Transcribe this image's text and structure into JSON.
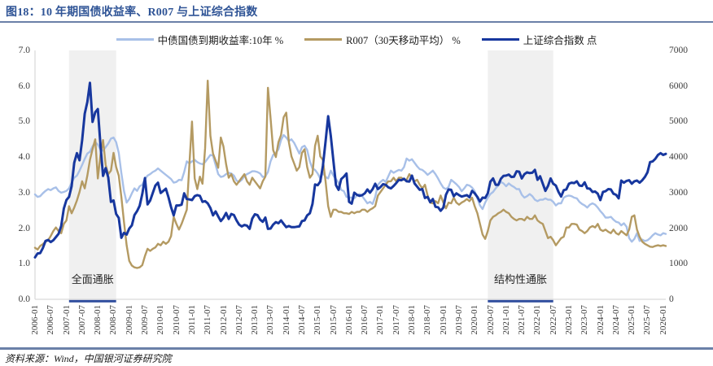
{
  "header": {
    "title": "图18：10 年期国债收益率、R007 与上证综合指数"
  },
  "footer": {
    "source": "资料来源：Wind，中国银河证券研究院"
  },
  "colors": {
    "title_blue": "#2F5496",
    "rule_blue": "#6B80A8",
    "axis_line": "#D9D9D9",
    "tick_text": "#3D3D3D",
    "region_fill": "#F0F0F0",
    "region_underline": "#2F4D9E",
    "bond10y": "#A8C0E8",
    "r007": "#B49A62",
    "sse": "#17379E"
  },
  "chart_data": {
    "type": "line",
    "title": "10 年期国债收益率、R007 与上证综合指数",
    "frequency": "monthly",
    "x_start": "2006-01",
    "x_end": "2026-02",
    "grid": false,
    "legend_position": "top",
    "left_axis": {
      "min": 0,
      "max": 7,
      "step": 1,
      "format": "0.0"
    },
    "right_axis": {
      "min": 0,
      "max": 7000,
      "step": 1000,
      "format": "0"
    },
    "x_tick_labels": [
      "2006-01",
      "2006-07",
      "2007-01",
      "2007-07",
      "2008-01",
      "2008-07",
      "2009-01",
      "2009-07",
      "2010-01",
      "2010-07",
      "2011-01",
      "2011-07",
      "2012-01",
      "2012-07",
      "2013-01",
      "2013-07",
      "2014-01",
      "2014-07",
      "2015-01",
      "2015-07",
      "2016-01",
      "2016-07",
      "2017-01",
      "2017-07",
      "2018-01",
      "2018-07",
      "2019-01",
      "2019-07",
      "2020-01",
      "2020-07",
      "2021-01",
      "2021-07",
      "2022-01",
      "2022-07",
      "2023-01",
      "2023-07",
      "2024-01",
      "2024-07",
      "2025-01",
      "2025-07",
      "2026-01"
    ],
    "highlight_regions": [
      {
        "label": "全面通胀",
        "start": "2007-02",
        "end": "2008-08"
      },
      {
        "label": "结构性通胀",
        "start": "2020-06",
        "end": "2022-07"
      }
    ],
    "series": [
      {
        "id": "bond10y",
        "name": "中债国债到期收益率:10年 %",
        "axis": "left",
        "color": "#A8C0E8",
        "width": 2.4,
        "values": [
          2.95,
          2.88,
          2.9,
          2.98,
          3.05,
          3.1,
          3.07,
          3.12,
          3.15,
          3.05,
          3.0,
          3.02,
          3.05,
          3.12,
          3.28,
          3.42,
          3.48,
          3.62,
          3.78,
          3.95,
          4.1,
          4.15,
          4.3,
          4.42,
          4.35,
          4.22,
          4.18,
          4.28,
          4.38,
          4.52,
          4.55,
          4.42,
          4.12,
          3.55,
          3.05,
          2.72,
          2.82,
          2.98,
          3.12,
          3.05,
          3.18,
          3.22,
          3.38,
          3.48,
          3.52,
          3.58,
          3.62,
          3.68,
          3.62,
          3.56,
          3.5,
          3.44,
          3.38,
          3.28,
          3.3,
          3.36,
          3.35,
          3.58,
          3.88,
          3.82,
          3.88,
          3.92,
          3.86,
          3.82,
          3.8,
          3.86,
          3.96,
          4.06,
          4.04,
          3.78,
          3.52,
          3.44,
          3.46,
          3.52,
          3.56,
          3.54,
          3.48,
          3.34,
          3.3,
          3.36,
          3.46,
          3.52,
          3.56,
          3.6,
          3.6,
          3.58,
          3.54,
          3.44,
          3.46,
          3.58,
          3.88,
          4.06,
          4.12,
          4.22,
          4.48,
          4.62,
          4.55,
          4.45,
          4.5,
          4.4,
          4.25,
          4.1,
          4.28,
          4.32,
          4.2,
          3.88,
          3.68,
          3.64,
          3.54,
          3.4,
          3.56,
          3.44,
          3.4,
          3.62,
          3.48,
          3.38,
          3.28,
          3.08,
          3.04,
          2.88,
          2.86,
          2.86,
          2.84,
          2.92,
          2.96,
          2.9,
          2.8,
          2.7,
          2.74,
          2.68,
          2.88,
          3.22,
          3.3,
          3.36,
          3.3,
          3.46,
          3.62,
          3.56,
          3.6,
          3.64,
          3.62,
          3.72,
          3.96,
          3.9,
          3.94,
          3.84,
          3.74,
          3.66,
          3.64,
          3.58,
          3.5,
          3.56,
          3.62,
          3.52,
          3.4,
          3.26,
          3.14,
          3.1,
          3.16,
          3.36,
          3.3,
          3.24,
          3.16,
          3.04,
          3.12,
          3.22,
          3.2,
          3.14,
          3.04,
          2.84,
          2.64,
          2.54,
          2.72,
          2.86,
          2.96,
          3.02,
          3.12,
          3.2,
          3.3,
          3.26,
          3.18,
          3.26,
          3.2,
          3.16,
          3.1,
          3.1,
          2.94,
          2.86,
          2.9,
          2.96,
          2.9,
          2.8,
          2.76,
          2.8,
          2.8,
          2.84,
          2.8,
          2.8,
          2.74,
          2.64,
          2.7,
          2.7,
          2.86,
          2.9,
          2.92,
          2.9,
          2.86,
          2.84,
          2.74,
          2.68,
          2.64,
          2.58,
          2.66,
          2.7,
          2.66,
          2.58,
          2.48,
          2.4,
          2.3,
          2.3,
          2.32,
          2.24,
          2.18,
          2.16,
          2.08,
          2.14,
          2.04,
          1.72,
          1.62,
          1.7,
          1.86,
          1.64,
          1.68,
          1.64,
          1.66,
          1.72,
          1.8,
          1.86,
          1.82,
          1.8,
          1.86,
          1.84
        ]
      },
      {
        "id": "r007",
        "name": "R007（30天移动平均） %",
        "axis": "left",
        "color": "#B49A62",
        "width": 2.4,
        "values": [
          1.45,
          1.4,
          1.5,
          1.55,
          1.62,
          1.66,
          1.78,
          1.92,
          2.02,
          1.92,
          1.86,
          2.12,
          2.22,
          2.62,
          2.42,
          2.58,
          2.78,
          3.02,
          3.32,
          3.12,
          3.48,
          3.92,
          4.22,
          4.5,
          3.4,
          4.05,
          4.48,
          3.78,
          3.52,
          3.62,
          4.12,
          3.72,
          3.48,
          2.88,
          2.18,
          1.52,
          1.08,
          0.95,
          0.9,
          0.88,
          0.9,
          0.96,
          1.22,
          1.42,
          1.36,
          1.42,
          1.46,
          1.56,
          1.52,
          1.62,
          1.56,
          1.62,
          1.78,
          2.32,
          2.12,
          1.96,
          2.12,
          2.32,
          2.52,
          3.8,
          5.0,
          3.4,
          3.1,
          3.45,
          3.25,
          4.25,
          6.15,
          4.6,
          4.1,
          3.9,
          3.7,
          4.55,
          4.3,
          3.8,
          3.42,
          3.52,
          3.32,
          3.22,
          3.32,
          3.42,
          3.52,
          3.32,
          3.22,
          3.42,
          3.32,
          3.22,
          3.12,
          3.32,
          3.45,
          5.95,
          5.1,
          4.2,
          4.0,
          4.42,
          4.62,
          5.12,
          5.25,
          4.42,
          4.02,
          3.82,
          3.62,
          3.72,
          4.12,
          4.22,
          3.72,
          3.42,
          3.52,
          4.32,
          4.6,
          4.02,
          3.92,
          3.32,
          2.62,
          2.32,
          2.52,
          2.52,
          2.46,
          2.46,
          2.42,
          2.42,
          2.4,
          2.46,
          2.42,
          2.46,
          2.46,
          2.52,
          2.52,
          2.46,
          2.52,
          2.56,
          2.62,
          2.92,
          3.02,
          3.12,
          3.22,
          3.32,
          3.32,
          3.42,
          3.32,
          3.42,
          3.42,
          3.36,
          3.36,
          3.52,
          3.42,
          3.32,
          3.36,
          3.22,
          3.12,
          3.22,
          2.92,
          2.72,
          2.7,
          2.76,
          2.7,
          2.92,
          2.72,
          2.56,
          2.72,
          2.7,
          2.86,
          2.72,
          2.66,
          2.72,
          2.76,
          2.82,
          2.76,
          2.86,
          2.62,
          2.42,
          2.12,
          1.82,
          1.7,
          1.92,
          2.22,
          2.32,
          2.36,
          2.42,
          2.46,
          2.52,
          2.46,
          2.42,
          2.32,
          2.26,
          2.22,
          2.26,
          2.26,
          2.22,
          2.32,
          2.26,
          2.26,
          2.36,
          2.22,
          2.16,
          2.12,
          1.92,
          1.72,
          1.76,
          1.66,
          1.52,
          1.62,
          1.72,
          1.76,
          2.02,
          2.02,
          2.12,
          2.12,
          2.1,
          1.96,
          1.92,
          1.86,
          1.92,
          2.02,
          2.06,
          2.02,
          2.12,
          1.96,
          1.92,
          1.96,
          1.9,
          1.86,
          1.96,
          1.86,
          1.82,
          1.92,
          1.86,
          1.8,
          1.96,
          2.32,
          2.36,
          1.96,
          1.76,
          1.62,
          1.56,
          1.52,
          1.48,
          1.47,
          1.5,
          1.52,
          1.5,
          1.52,
          1.5
        ]
      },
      {
        "id": "sse",
        "name": "上证综合指数 点",
        "axis": "right",
        "color": "#17379E",
        "width": 3,
        "values": [
          1180,
          1290,
          1300,
          1440,
          1640,
          1670,
          1610,
          1660,
          1750,
          1840,
          2060,
          2550,
          2790,
          2880,
          3180,
          3840,
          4110,
          3910,
          4470,
          5220,
          5550,
          6090,
          4990,
          5260,
          5350,
          4350,
          3470,
          3690,
          3430,
          2740,
          2780,
          2400,
          2290,
          1730,
          1870,
          1820,
          1990,
          2080,
          2370,
          2480,
          2630,
          2960,
          3410,
          2670,
          2780,
          2990,
          3200,
          3280,
          2990,
          3050,
          3110,
          2870,
          2590,
          2360,
          2640,
          2640,
          2660,
          2980,
          2820,
          2810,
          2790,
          2900,
          2930,
          2910,
          2740,
          2760,
          2700,
          2570,
          2360,
          2470,
          2330,
          2200,
          2290,
          2430,
          2260,
          2400,
          2370,
          2220,
          2100,
          2050,
          2090,
          2070,
          1980,
          2270,
          2390,
          2370,
          2240,
          2180,
          2300,
          1980,
          1990,
          2100,
          2170,
          2140,
          2220,
          2120,
          2030,
          2060,
          2030,
          2030,
          2040,
          2050,
          2200,
          2220,
          2360,
          2420,
          2680,
          3230,
          3210,
          3310,
          3750,
          4440,
          5150,
          4600,
          3900,
          3210,
          3080,
          3380,
          3450,
          3540,
          2740,
          2690,
          3000,
          2940,
          2910,
          2930,
          2980,
          3090,
          3000,
          3100,
          3250,
          3100,
          3160,
          3240,
          3220,
          3150,
          3120,
          3190,
          3270,
          3360,
          3350,
          3390,
          3320,
          3310,
          3480,
          3260,
          3170,
          3080,
          3100,
          2850,
          2880,
          2730,
          2820,
          2600,
          2590,
          2490,
          2580,
          2940,
          3090,
          3080,
          2900,
          2980,
          2930,
          2890,
          2910,
          2930,
          2870,
          3050,
          2980,
          2880,
          2750,
          2860,
          2850,
          2980,
          3310,
          3400,
          3220,
          3220,
          3390,
          3470,
          3480,
          3510,
          3440,
          3450,
          3600,
          3590,
          3400,
          3520,
          3570,
          3550,
          3560,
          3640,
          3360,
          3460,
          3250,
          3050,
          3190,
          3400,
          3250,
          3200,
          3020,
          2890,
          3070,
          3090,
          3250,
          3280,
          3270,
          3320,
          3200,
          3190,
          3290,
          3120,
          3110,
          3020,
          3030,
          2970,
          2790,
          3020,
          3040,
          3100,
          3090,
          2970,
          2940,
          2840,
          3340,
          3280,
          3330,
          3350,
          3250,
          3320,
          3340,
          3280,
          3350,
          3440,
          3570,
          3860,
          3880,
          3950,
          4060,
          4110,
          4060,
          4090
        ]
      }
    ]
  }
}
